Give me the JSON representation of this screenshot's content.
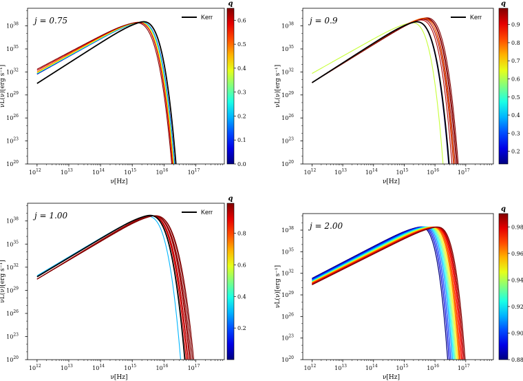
{
  "figure": {
    "x_axis_label": "ν[Hz]",
    "y_axis_label": "νL(ν)[erg s⁻¹]",
    "colorbar_title": "q",
    "legend_kerr": "Kerr"
  },
  "chart_data": [
    {
      "type": "line",
      "panel": "top-left",
      "annotation": "j = 0.75",
      "xscale": "log",
      "yscale": "log",
      "xlim_log10": [
        11.7,
        17.9
      ],
      "ylim_log10": [
        20,
        40.3
      ],
      "x_ticks": [
        "10^12",
        "10^13",
        "10^14",
        "10^15",
        "10^16",
        "10^17"
      ],
      "y_ticks": [
        "10^20",
        "10^23",
        "10^26",
        "10^29",
        "10^32",
        "10^35",
        "10^38"
      ],
      "legend": "top-right",
      "colorbar": {
        "min": 0.0,
        "max": 0.65,
        "ticks": [
          "0.0",
          "0.1",
          "0.2",
          "0.3",
          "0.4",
          "0.5",
          "0.6"
        ]
      },
      "kerr": {
        "low_log10L": 30.5,
        "peak_log10nu": 15.15,
        "peak_log10L": 38.85,
        "cutoff_log10nu": 16.53
      },
      "series": [
        {
          "q": 0.0,
          "low_log10L": 31.7,
          "peak_log10nu": 15.1,
          "peak_log10L": 38.85,
          "cutoff_log10nu": 16.5
        },
        {
          "q": 0.1,
          "low_log10L": 31.75,
          "peak_log10nu": 15.1,
          "peak_log10L": 38.85,
          "cutoff_log10nu": 16.5
        },
        {
          "q": 0.2,
          "low_log10L": 31.8,
          "peak_log10nu": 15.1,
          "peak_log10L": 38.85,
          "cutoff_log10nu": 16.49
        },
        {
          "q": 0.3,
          "low_log10L": 31.85,
          "peak_log10nu": 15.05,
          "peak_log10L": 38.85,
          "cutoff_log10nu": 16.48
        },
        {
          "q": 0.4,
          "low_log10L": 31.9,
          "peak_log10nu": 15.05,
          "peak_log10L": 38.85,
          "cutoff_log10nu": 16.47
        },
        {
          "q": 0.5,
          "low_log10L": 32.0,
          "peak_log10nu": 15.0,
          "peak_log10L": 38.85,
          "cutoff_log10nu": 16.46
        },
        {
          "q": 0.6,
          "low_log10L": 32.2,
          "peak_log10nu": 15.0,
          "peak_log10L": 38.85,
          "cutoff_log10nu": 16.44
        },
        {
          "q": 0.65,
          "low_log10L": 32.35,
          "peak_log10nu": 14.95,
          "peak_log10L": 38.8,
          "cutoff_log10nu": 16.42
        }
      ]
    },
    {
      "type": "line",
      "panel": "top-right",
      "annotation": "j = 0.9",
      "xscale": "log",
      "yscale": "log",
      "xlim_log10": [
        11.7,
        17.9
      ],
      "ylim_log10": [
        20,
        40.3
      ],
      "x_ticks": [
        "10^12",
        "10^13",
        "10^14",
        "10^15",
        "10^16",
        "10^17"
      ],
      "y_ticks": [
        "10^20",
        "10^23",
        "10^26",
        "10^29",
        "10^32",
        "10^35",
        "10^38"
      ],
      "legend": "top-right",
      "colorbar": {
        "min": 0.13,
        "max": 0.99,
        "ticks": [
          "0.2",
          "0.3",
          "0.4",
          "0.5",
          "0.6",
          "0.7",
          "0.8",
          "0.9"
        ]
      },
      "kerr": {
        "low_log10L": 30.6,
        "peak_log10nu": 15.2,
        "peak_log10L": 38.85,
        "cutoff_log10nu": 16.62
      },
      "series": [
        {
          "q": 0.62,
          "low_log10L": 31.8,
          "peak_log10nu": 15.1,
          "peak_log10L": 38.8,
          "cutoff_log10nu": 16.42
        },
        {
          "q": 0.15,
          "low_log10L": 30.6,
          "peak_log10nu": 15.2,
          "peak_log10L": 38.85,
          "cutoff_log10nu": 16.6
        },
        {
          "q": 0.95,
          "low_log10L": 30.6,
          "peak_log10nu": 15.35,
          "peak_log10L": 39.1,
          "cutoff_log10nu": 16.7
        },
        {
          "q": 0.96,
          "low_log10L": 30.6,
          "peak_log10nu": 15.4,
          "peak_log10L": 39.2,
          "cutoff_log10nu": 16.75
        },
        {
          "q": 0.97,
          "low_log10L": 30.6,
          "peak_log10nu": 15.45,
          "peak_log10L": 39.25,
          "cutoff_log10nu": 16.8
        },
        {
          "q": 0.98,
          "low_log10L": 30.6,
          "peak_log10nu": 15.5,
          "peak_log10L": 39.3,
          "cutoff_log10nu": 16.84
        },
        {
          "q": 0.985,
          "low_log10L": 30.6,
          "peak_log10nu": 15.5,
          "peak_log10L": 39.35,
          "cutoff_log10nu": 16.87
        },
        {
          "q": 0.99,
          "low_log10L": 30.6,
          "peak_log10nu": 15.55,
          "peak_log10L": 39.4,
          "cutoff_log10nu": 16.9
        },
        {
          "q": 0.8,
          "low_log10L": 30.6,
          "peak_log10nu": 15.45,
          "peak_log10L": 39.35,
          "cutoff_log10nu": 16.76
        }
      ]
    },
    {
      "type": "line",
      "panel": "bottom-left",
      "annotation": "j = 1.00",
      "xscale": "log",
      "yscale": "log",
      "xlim_log10": [
        11.7,
        17.9
      ],
      "ylim_log10": [
        20,
        40.3
      ],
      "x_ticks": [
        "10^12",
        "10^13",
        "10^14",
        "10^15",
        "10^16",
        "10^17"
      ],
      "y_ticks": [
        "10^20",
        "10^23",
        "10^26",
        "10^29",
        "10^32",
        "10^35",
        "10^38"
      ],
      "legend": "top-right",
      "colorbar": {
        "min": 0.0,
        "max": 0.99,
        "ticks": [
          "0.2",
          "0.4",
          "0.6",
          "0.8"
        ]
      },
      "kerr": {
        "low_log10L": 30.75,
        "peak_log10nu": 15.35,
        "peak_log10L": 39.05,
        "cutoff_log10nu": 16.82
      },
      "series": [
        {
          "q": 0.3,
          "low_log10L": 30.9,
          "peak_log10nu": 15.3,
          "peak_log10L": 38.95,
          "cutoff_log10nu": 16.68
        },
        {
          "q": 0.9,
          "low_log10L": 30.45,
          "peak_log10nu": 15.4,
          "peak_log10L": 39.0,
          "cutoff_log10nu": 16.86
        },
        {
          "q": 0.92,
          "low_log10L": 30.45,
          "peak_log10nu": 15.4,
          "peak_log10L": 39.0,
          "cutoff_log10nu": 16.9
        },
        {
          "q": 0.94,
          "low_log10L": 30.45,
          "peak_log10nu": 15.4,
          "peak_log10L": 39.0,
          "cutoff_log10nu": 16.93
        },
        {
          "q": 0.96,
          "low_log10L": 30.45,
          "peak_log10nu": 15.45,
          "peak_log10L": 39.0,
          "cutoff_log10nu": 16.97
        },
        {
          "q": 0.97,
          "low_log10L": 30.45,
          "peak_log10nu": 15.45,
          "peak_log10L": 39.0,
          "cutoff_log10nu": 17.0
        },
        {
          "q": 0.98,
          "low_log10L": 30.45,
          "peak_log10nu": 15.45,
          "peak_log10L": 39.0,
          "cutoff_log10nu": 17.04
        },
        {
          "q": 0.985,
          "low_log10L": 30.45,
          "peak_log10nu": 15.5,
          "peak_log10L": 39.0,
          "cutoff_log10nu": 17.08
        },
        {
          "q": 0.99,
          "low_log10L": 30.45,
          "peak_log10nu": 15.5,
          "peak_log10L": 39.0,
          "cutoff_log10nu": 17.12
        }
      ]
    },
    {
      "type": "line",
      "panel": "bottom-right",
      "annotation": "j = 2.00",
      "xscale": "log",
      "yscale": "log",
      "xlim_log10": [
        11.7,
        17.9
      ],
      "ylim_log10": [
        20,
        40.3
      ],
      "x_ticks": [
        "10^12",
        "10^13",
        "10^14",
        "10^15",
        "10^16",
        "10^17"
      ],
      "y_ticks": [
        "10^20",
        "10^23",
        "10^26",
        "10^29",
        "10^32",
        "10^35",
        "10^38"
      ],
      "legend": "none",
      "colorbar": {
        "min": 0.88,
        "max": 0.99,
        "ticks": [
          "0.88",
          "0.90",
          "0.92",
          "0.94",
          "0.96",
          "0.98"
        ]
      },
      "series": [
        {
          "q": 0.88,
          "low_log10L": 31.3,
          "peak_log10nu": 15.4,
          "peak_log10L": 38.85,
          "cutoff_log10nu": 16.55
        },
        {
          "q": 0.89,
          "low_log10L": 31.2,
          "peak_log10nu": 15.45,
          "peak_log10L": 38.85,
          "cutoff_log10nu": 16.6
        },
        {
          "q": 0.9,
          "low_log10L": 31.1,
          "peak_log10nu": 15.5,
          "peak_log10L": 38.85,
          "cutoff_log10nu": 16.65
        },
        {
          "q": 0.91,
          "low_log10L": 31.0,
          "peak_log10nu": 15.55,
          "peak_log10L": 38.85,
          "cutoff_log10nu": 16.7
        },
        {
          "q": 0.92,
          "low_log10L": 30.9,
          "peak_log10nu": 15.6,
          "peak_log10L": 38.85,
          "cutoff_log10nu": 16.74
        },
        {
          "q": 0.93,
          "low_log10L": 30.85,
          "peak_log10nu": 15.65,
          "peak_log10L": 38.85,
          "cutoff_log10nu": 16.78
        },
        {
          "q": 0.94,
          "low_log10L": 30.8,
          "peak_log10nu": 15.7,
          "peak_log10L": 38.85,
          "cutoff_log10nu": 16.82
        },
        {
          "q": 0.95,
          "low_log10L": 30.75,
          "peak_log10nu": 15.75,
          "peak_log10L": 38.85,
          "cutoff_log10nu": 16.86
        },
        {
          "q": 0.96,
          "low_log10L": 30.7,
          "peak_log10nu": 15.8,
          "peak_log10L": 38.85,
          "cutoff_log10nu": 16.9
        },
        {
          "q": 0.965,
          "low_log10L": 30.65,
          "peak_log10nu": 15.82,
          "peak_log10L": 38.85,
          "cutoff_log10nu": 16.93
        },
        {
          "q": 0.97,
          "low_log10L": 30.6,
          "peak_log10nu": 15.85,
          "peak_log10L": 38.85,
          "cutoff_log10nu": 16.96
        },
        {
          "q": 0.975,
          "low_log10L": 30.55,
          "peak_log10nu": 15.88,
          "peak_log10L": 38.85,
          "cutoff_log10nu": 17.0
        },
        {
          "q": 0.98,
          "low_log10L": 30.5,
          "peak_log10nu": 15.9,
          "peak_log10L": 38.85,
          "cutoff_log10nu": 17.04
        },
        {
          "q": 0.985,
          "low_log10L": 30.45,
          "peak_log10nu": 15.92,
          "peak_log10L": 38.85,
          "cutoff_log10nu": 17.08
        },
        {
          "q": 0.99,
          "low_log10L": 30.4,
          "peak_log10nu": 15.95,
          "peak_log10L": 38.85,
          "cutoff_log10nu": 17.12
        }
      ]
    }
  ]
}
